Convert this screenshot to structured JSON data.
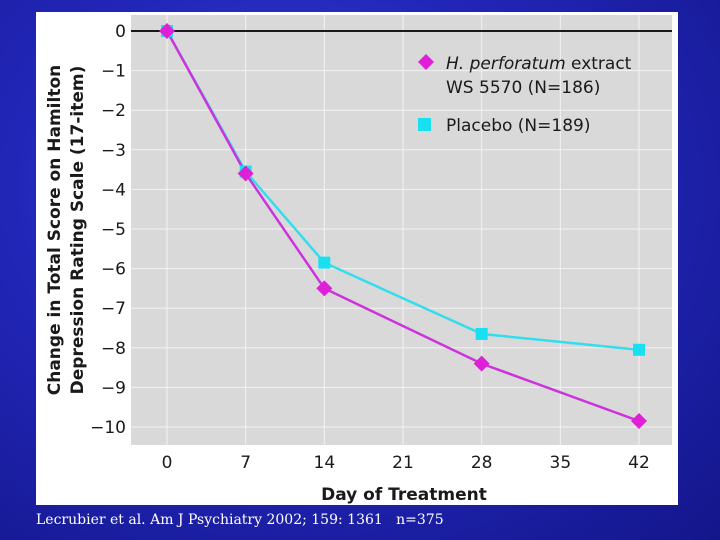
{
  "citation": "Lecrubier et al. Am J Psychiatry 2002; 159: 1361   n=375",
  "chart_data": {
    "type": "line",
    "xlabel": "Day of Treatment",
    "ylabel_lines": [
      "Change in Total Score on Hamilton",
      "Depression Rating Scale (17-item)"
    ],
    "x_ticks": [
      0,
      7,
      14,
      21,
      28,
      35,
      42
    ],
    "y_ticks": [
      0,
      -1,
      -2,
      -3,
      -4,
      -5,
      -6,
      -7,
      -8,
      -9,
      -10
    ],
    "y_tick_labels": [
      "0",
      "−1",
      "−2",
      "−3",
      "−4",
      "−5",
      "−6",
      "−7",
      "−8",
      "−9",
      "−10"
    ],
    "xlim": [
      0,
      42
    ],
    "ylim": [
      -10,
      0
    ],
    "grid": true,
    "legend_position": "top-right",
    "series": [
      {
        "name_italic": "H. perforatum",
        "name_rest": " extract",
        "name_line2": "WS 5570 (N=186)",
        "color": "#e020d6",
        "line_color": "#cc33dd",
        "marker": "diamond",
        "x": [
          0,
          7,
          14,
          28,
          42
        ],
        "y": [
          0,
          -3.6,
          -6.5,
          -8.4,
          -9.85
        ]
      },
      {
        "name": "Placebo (N=189)",
        "color": "#18e0f0",
        "line_color": "#33ddee",
        "marker": "square",
        "x": [
          0,
          7,
          14,
          28,
          42
        ],
        "y": [
          0,
          -3.55,
          -5.85,
          -7.65,
          -8.05
        ]
      }
    ]
  }
}
